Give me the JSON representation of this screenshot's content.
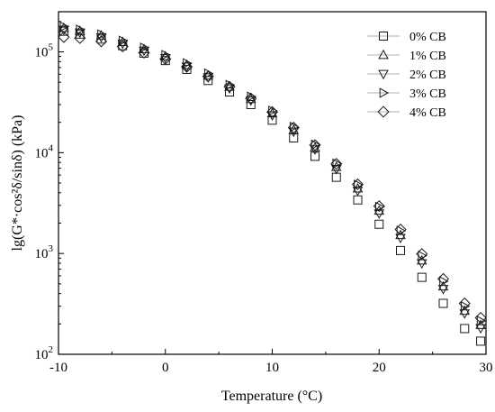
{
  "chart_data": {
    "type": "scatter",
    "title": "",
    "xlabel": "Temperature (°C)",
    "ylabel": "lg(G*·cos²δ/sinδ) (kPa)",
    "xlim": [
      -10,
      30
    ],
    "ylim": [
      100,
      250000
    ],
    "y_scale": "log",
    "grid": false,
    "legend_position": "top-right",
    "x_ticks": [
      -10,
      0,
      10,
      20,
      30
    ],
    "x_tick_labels": [
      "-10",
      "0",
      "10",
      "20",
      "30"
    ],
    "y_ticks": [
      100,
      1000,
      10000,
      100000
    ],
    "y_tick_labels": [
      {
        "base": "10",
        "exp": "2"
      },
      {
        "base": "10",
        "exp": "3"
      },
      {
        "base": "10",
        "exp": "4"
      },
      {
        "base": "10",
        "exp": "5"
      }
    ],
    "series": [
      {
        "name": "0% CB",
        "marker": "square",
        "x": [
          -9.5,
          -8,
          -6,
          -4,
          -2,
          0,
          2,
          4,
          6,
          8,
          10,
          12,
          14,
          16,
          18,
          20,
          22,
          24,
          26,
          28,
          29.5
        ],
        "y": [
          160000,
          150000,
          134000,
          115000,
          97000,
          82000,
          67000,
          52000,
          40000,
          30000,
          21000,
          14000,
          9200,
          5700,
          3400,
          1950,
          1070,
          580,
          320,
          180,
          135
        ]
      },
      {
        "name": "1% CB",
        "marker": "triangle-up",
        "x": [
          -9.5,
          -8,
          -6,
          -4,
          -2,
          0,
          2,
          4,
          6,
          8,
          10,
          12,
          14,
          16,
          18,
          20,
          22,
          24,
          26,
          28,
          29.5
        ],
        "y": [
          172000,
          161000,
          145000,
          125000,
          106000,
          90000,
          74000,
          58000,
          45000,
          34000,
          24500,
          16800,
          11200,
          7200,
          4400,
          2650,
          1520,
          850,
          470,
          270,
          195
        ]
      },
      {
        "name": "2% CB",
        "marker": "triangle-down",
        "x": [
          -9.5,
          -8,
          -6,
          -4,
          -2,
          0,
          2,
          4,
          6,
          8,
          10,
          12,
          14,
          16,
          18,
          20,
          22,
          24,
          26,
          28,
          29.5
        ],
        "y": [
          166000,
          156000,
          140000,
          121000,
          103000,
          87000,
          71500,
          56000,
          43500,
          33000,
          23500,
          16200,
          10800,
          6900,
          4200,
          2500,
          1430,
          800,
          445,
          255,
          182
        ]
      },
      {
        "name": "3% CB",
        "marker": "triangle-right",
        "x": [
          -9.5,
          -8,
          -6,
          -4,
          -2,
          0,
          2,
          4,
          6,
          8,
          10,
          12,
          14,
          16,
          18,
          20,
          22,
          24,
          26,
          28,
          29.5
        ],
        "y": [
          178000,
          166000,
          149000,
          129000,
          110000,
          93000,
          77000,
          61000,
          47000,
          36000,
          26000,
          18000,
          12000,
          7800,
          4800,
          2900,
          1680,
          950,
          530,
          300,
          215
        ]
      },
      {
        "name": "4% CB",
        "marker": "diamond",
        "x": [
          -9.5,
          -8,
          -6,
          -4,
          -2,
          0,
          2,
          4,
          6,
          8,
          10,
          12,
          14,
          16,
          18,
          20,
          22,
          24,
          26,
          28,
          29.5
        ],
        "y": [
          140000,
          137000,
          127000,
          113000,
          98000,
          85000,
          71000,
          57000,
          45000,
          34500,
          25300,
          17700,
          11900,
          7750,
          4850,
          2950,
          1730,
          990,
          560,
          320,
          230
        ]
      }
    ]
  }
}
